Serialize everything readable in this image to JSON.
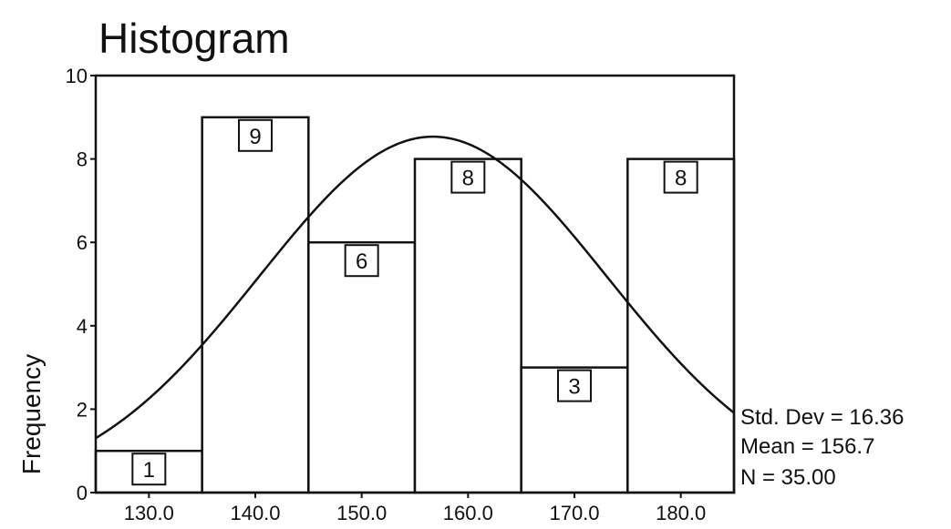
{
  "chart_data": {
    "type": "bar",
    "title": "Histogram",
    "xlabel": "",
    "ylabel": "Frequency",
    "categories": [
      "130.0",
      "140.0",
      "150.0",
      "160.0",
      "170.0",
      "180.0"
    ],
    "values": [
      1,
      9,
      6,
      8,
      3,
      8
    ],
    "bin_centers": [
      130.0,
      140.0,
      150.0,
      160.0,
      170.0,
      180.0
    ],
    "bin_width": 10,
    "xlim": [
      125,
      185
    ],
    "ylim": [
      0,
      10
    ],
    "yticks": [
      "0",
      "2",
      "4",
      "6",
      "8",
      "10"
    ],
    "normal_curve": {
      "mean": 156.7,
      "std_dev": 16.36,
      "n": 35
    },
    "stats": {
      "std_dev": "Std. Dev = 16.36",
      "mean": "Mean = 156.7",
      "n": "N = 35.00"
    },
    "grid": false,
    "legend": "none"
  }
}
